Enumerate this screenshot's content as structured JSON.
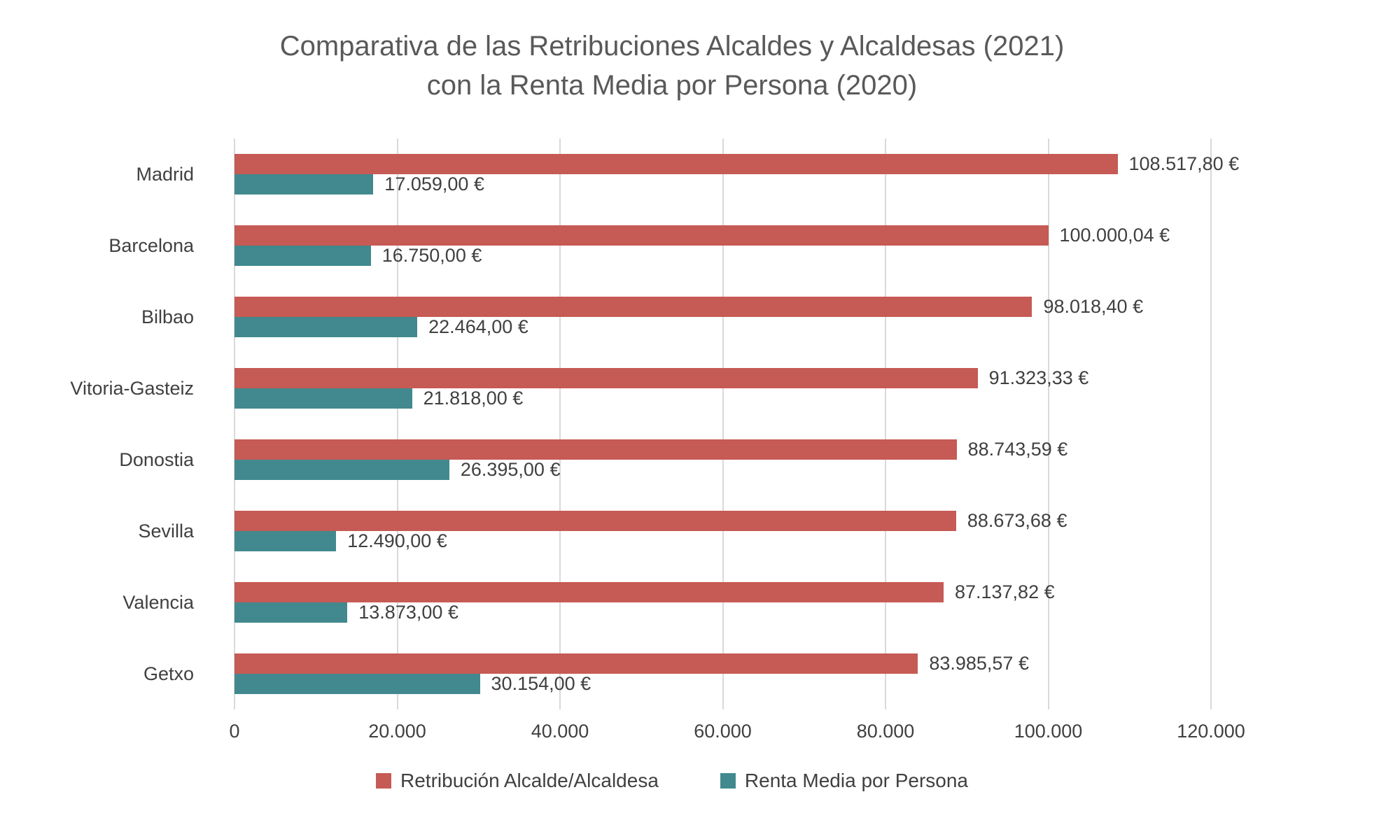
{
  "title": {
    "line1": "Comparativa de las Retribuciones Alcaldes y Alcaldesas (2021)",
    "line2": "con la Renta Media por Persona (2020)"
  },
  "colors": {
    "retribucion": "#c65a54",
    "renta": "#41898e",
    "title_text": "#595959",
    "label_text": "#404040",
    "gridline": "#d9d9d9"
  },
  "chart_data": {
    "type": "bar",
    "orientation": "horizontal",
    "title": "Comparativa de las Retribuciones Alcaldes y Alcaldesas (2021) con la Renta Media por Persona (2020)",
    "categories": [
      "Madrid",
      "Barcelona",
      "Bilbao",
      "Vitoria-Gasteiz",
      "Donostia",
      "Sevilla",
      "Valencia",
      "Getxo"
    ],
    "series": [
      {
        "name": "Retribución Alcalde/Alcaldesa",
        "color": "#c65a54",
        "values": [
          108517.8,
          100000.04,
          98018.4,
          91323.33,
          88743.59,
          88673.68,
          87137.82,
          83985.57
        ],
        "labels": [
          "108.517,80 €",
          "100.000,04 €",
          "98.018,40 €",
          "91.323,33 €",
          "88.743,59 €",
          "88.673,68 €",
          "87.137,82 €",
          "83.985,57 €"
        ]
      },
      {
        "name": "Renta Media por Persona",
        "color": "#41898e",
        "values": [
          17059.0,
          16750.0,
          22464.0,
          21818.0,
          26395.0,
          12490.0,
          13873.0,
          30154.0
        ],
        "labels": [
          "17.059,00 €",
          "16.750,00 €",
          "22.464,00 €",
          "21.818,00 €",
          "26.395,00 €",
          "12.490,00 €",
          "13.873,00 €",
          "30.154,00 €"
        ]
      }
    ],
    "xlabel": "",
    "ylabel": "",
    "xlim": [
      0,
      120000
    ],
    "x_ticks": [
      "0",
      "20.000",
      "40.000",
      "60.000",
      "80.000",
      "100.000",
      "120.000"
    ],
    "grid": true,
    "legend_position": "bottom"
  }
}
